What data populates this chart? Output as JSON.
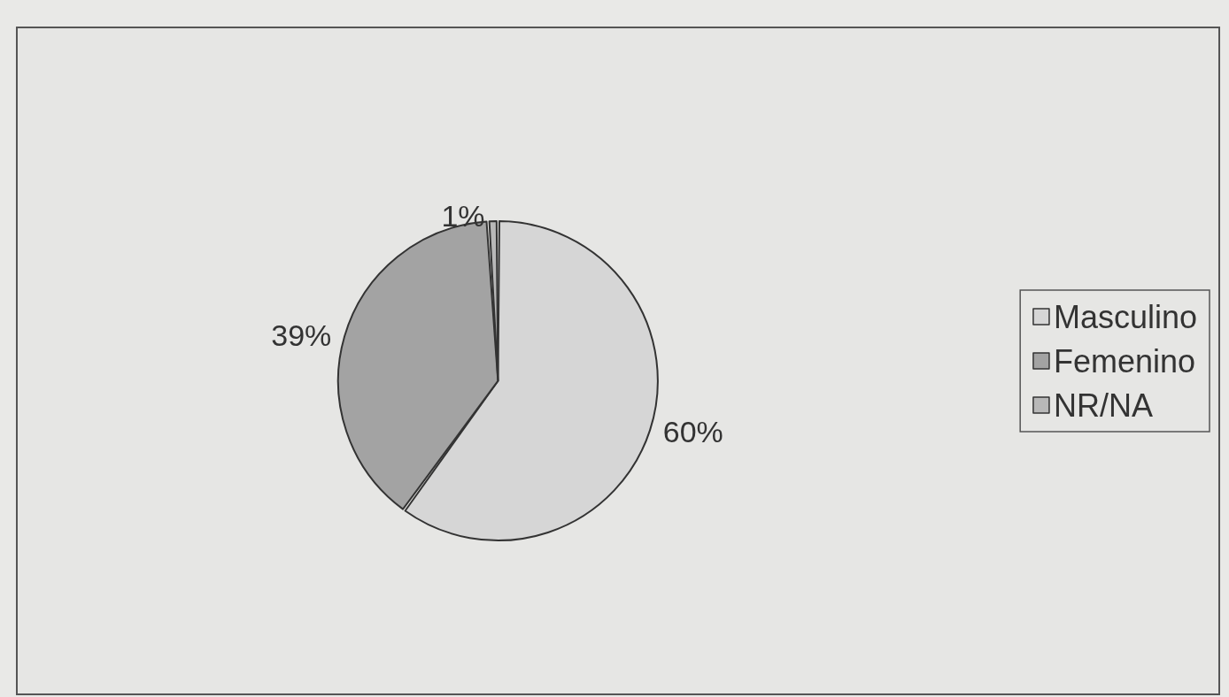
{
  "chart_data": {
    "type": "pie",
    "categories": [
      "Masculino",
      "Femenino",
      "NR/NA"
    ],
    "values": [
      60,
      39,
      1
    ],
    "colors": [
      "#d6d6d6",
      "#a3a3a3",
      "#b8b8b8"
    ],
    "value_labels": [
      "60%",
      "39%",
      "1%"
    ],
    "legend": "right"
  }
}
